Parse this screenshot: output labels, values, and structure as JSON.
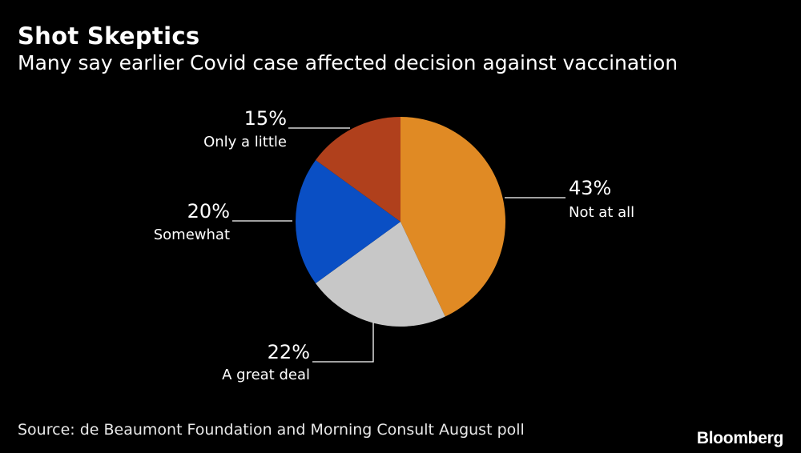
{
  "title": "Shot Skeptics",
  "subtitle": "Many say earlier Covid case affected decision against vaccination",
  "source": "Source: de Beaumont Foundation and Morning Consult August poll",
  "brand": "Bloomberg",
  "chart_data": {
    "type": "pie",
    "title": "Shot Skeptics",
    "subtitle": "Many say earlier Covid case affected decision against vaccination",
    "slices": [
      {
        "label": "Not at all",
        "value": 43,
        "display": "43%",
        "color": "#e08a24"
      },
      {
        "label": "A great deal",
        "value": 22,
        "display": "22%",
        "color": "#c7c7c7"
      },
      {
        "label": "Somewhat",
        "value": 20,
        "display": "20%",
        "color": "#0a4fc4"
      },
      {
        "label": "Only a little",
        "value": 15,
        "display": "15%",
        "color": "#b0401c"
      }
    ],
    "start_angle": "12 o'clock",
    "direction": "clockwise"
  }
}
